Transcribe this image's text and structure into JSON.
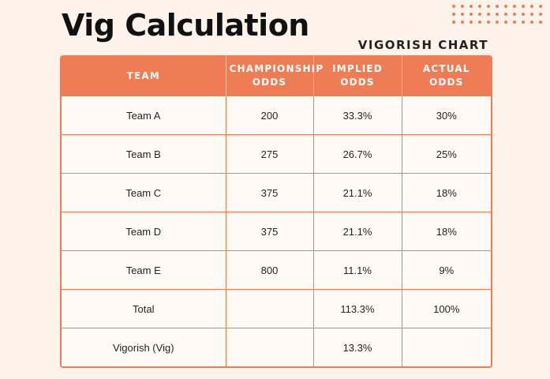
{
  "title": "Vig Calculation",
  "subtitle": "VIGORISH CHART",
  "colors": {
    "accent": "#ee7d55",
    "background": "#fdf3ea"
  },
  "table": {
    "headers": [
      "TEAM",
      "CHAMPIONSHIP ODDS",
      "IMPLIED ODDS",
      "ACTUAL ODDS"
    ],
    "rows": [
      [
        "Team A",
        "200",
        "33.3%",
        "30%"
      ],
      [
        "Team B",
        "275",
        "26.7%",
        "25%"
      ],
      [
        "Team C",
        "375",
        "21.1%",
        "18%"
      ],
      [
        "Team D",
        "375",
        "21.1%",
        "18%"
      ],
      [
        "Team E",
        "800",
        "11.1%",
        "9%"
      ],
      [
        "Total",
        "",
        "113.3%",
        "100%"
      ],
      [
        "Vigorish (Vig)",
        "",
        "13.3%",
        ""
      ]
    ]
  }
}
